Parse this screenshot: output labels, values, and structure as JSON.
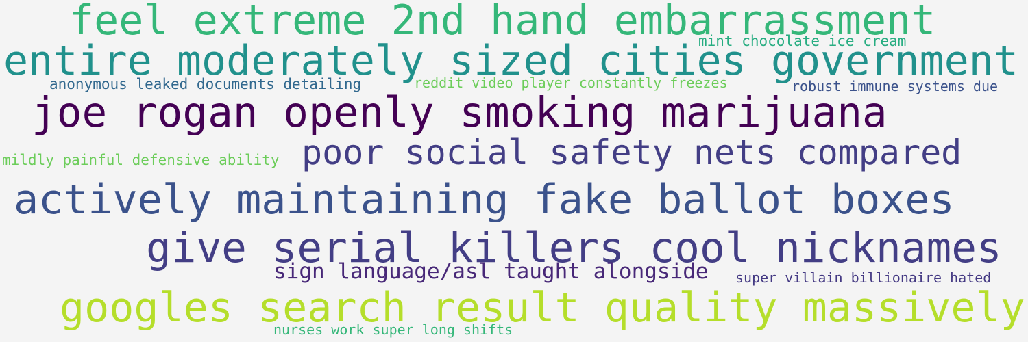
{
  "phrases": [
    {
      "text": "feel extreme 2nd hand embarrassment",
      "color": "#35b779"
    },
    {
      "text": "mint chocolate ice cream",
      "color": "#27ad81"
    },
    {
      "text": "entire moderately sized cities government",
      "color": "#21918c"
    },
    {
      "text": "anonymous leaked documents detailing",
      "color": "#31688e"
    },
    {
      "text": "reddit video player constantly freezes",
      "color": "#6ccd5a"
    },
    {
      "text": "robust immune systems due",
      "color": "#3b528b"
    },
    {
      "text": "joe rogan openly smoking marijuana",
      "color": "#440154"
    },
    {
      "text": "mildly painful defensive ability",
      "color": "#6ccd5a"
    },
    {
      "text": "poor social safety nets compared",
      "color": "#433e85"
    },
    {
      "text": "actively maintaining fake ballot boxes",
      "color": "#3b528b"
    },
    {
      "text": "give serial killers cool nicknames",
      "color": "#433e85"
    },
    {
      "text": "sign language/asl taught alongside",
      "color": "#482878"
    },
    {
      "text": "super villain billionaire hated",
      "color": "#443983"
    },
    {
      "text": "googles search result quality massively",
      "color": "#b5de2b"
    },
    {
      "text": "nurses work super long shifts",
      "color": "#35b779"
    }
  ]
}
